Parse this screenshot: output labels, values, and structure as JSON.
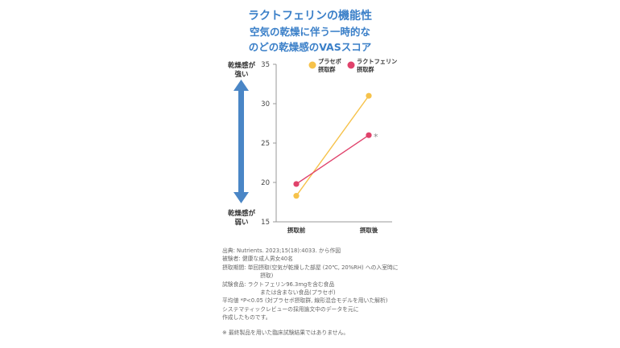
{
  "title": {
    "line1": "ラクトフェリンの機能性",
    "line2": "空気の乾燥に伴う一時的な",
    "line3": "のどの乾燥感のVASスコア"
  },
  "colors": {
    "title": "#3a7fc8",
    "arrow": "#4a86c6",
    "placebo": "#f6c24a",
    "lactoferrin": "#e0426b",
    "axis": "#999999"
  },
  "chart_data": {
    "type": "line",
    "categories": [
      "摂取前",
      "摂取後"
    ],
    "series": [
      {
        "name": "プラセボ摂取群",
        "legend_lines": [
          "プラセボ",
          "摂取群"
        ],
        "values": [
          18.3,
          31.0
        ],
        "color": "#f6c24a"
      },
      {
        "name": "ラクトフェリン摂取群",
        "legend_lines": [
          "ラクトフェリン",
          "摂取群"
        ],
        "values": [
          19.8,
          26.0
        ],
        "color": "#e0426b"
      }
    ],
    "ylim": [
      15,
      35
    ],
    "yticks": [
      15,
      20,
      25,
      30,
      35
    ],
    "y_top_label": [
      "乾燥感が",
      "強い"
    ],
    "y_bottom_label": [
      "乾燥感が",
      "弱い"
    ],
    "significance_mark": "*",
    "legend_position": "top-right",
    "grid": false
  },
  "notes": {
    "source": "出典: Nutrients. 2023;15(18):4033. から作図",
    "subjects": "被験者: 健康な成人男女40名",
    "period_1": "摂取期間: 単回摂取(空気が乾燥した部屋 (20℃, 20%RH) への入室時に",
    "period_2": "摂取)",
    "food_1": "試験食品: ラクトフェリン96.3mgを含む食品",
    "food_2": "または含まない食品(プラセボ)",
    "stats": "平均値 *P<0.05 (対プラセボ摂取群, 線形混合モデルを用いた解析)",
    "review_1": "システマティックレビューの採用論文中のデータを元に",
    "review_2": "作成したものです。",
    "disclaimer": "※ 最終製品を用いた臨床試験結果ではありません。"
  }
}
